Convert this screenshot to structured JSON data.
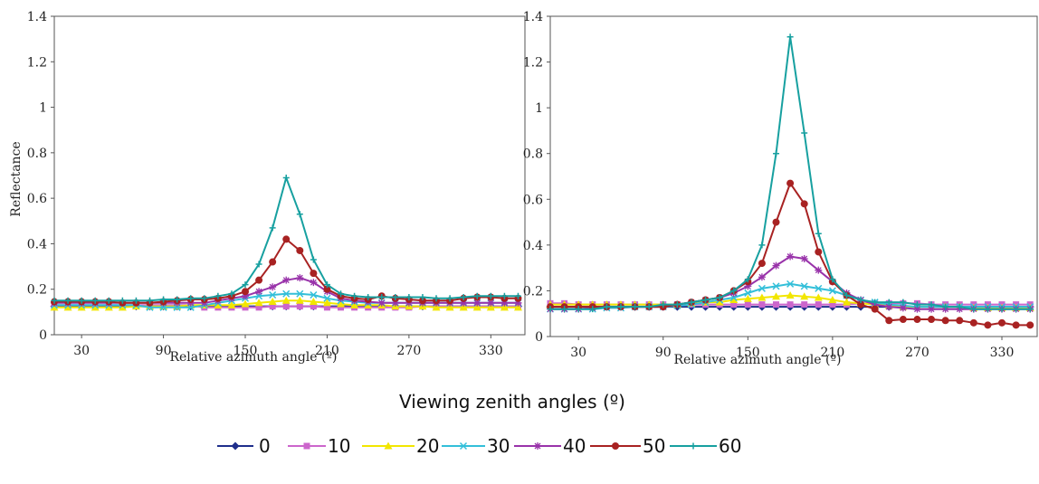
{
  "chart_data": [
    {
      "type": "line",
      "xlabel": "Relative azimuth angle (º)",
      "ylabel": "Reflectance",
      "xlim": [
        10,
        355
      ],
      "ylim": [
        0,
        1.4
      ],
      "xticks": [
        "30",
        "90",
        "150",
        "210",
        "270",
        "330"
      ],
      "yticks": [
        "0",
        "0.2",
        "0.4",
        "0.6",
        "0.8",
        "1",
        "1.2",
        "1.4"
      ],
      "x": [
        10,
        20,
        30,
        40,
        50,
        60,
        70,
        80,
        90,
        100,
        110,
        120,
        130,
        140,
        150,
        160,
        170,
        180,
        190,
        200,
        210,
        220,
        230,
        240,
        250,
        260,
        270,
        280,
        290,
        300,
        310,
        320,
        330,
        340,
        350
      ],
      "series": [
        {
          "name": "0",
          "color": "#1f2f8c",
          "marker": "diamond",
          "values": [
            0.125,
            0.125,
            0.125,
            0.125,
            0.125,
            0.125,
            0.125,
            0.125,
            0.125,
            0.125,
            0.125,
            0.125,
            0.125,
            0.125,
            0.125,
            0.125,
            0.125,
            0.125,
            0.125,
            0.125,
            0.125,
            0.125,
            0.125,
            0.125,
            0.125,
            0.125,
            0.125,
            0.125,
            0.125,
            0.125,
            0.125,
            0.125,
            0.125,
            0.125,
            0.125
          ]
        },
        {
          "name": "10",
          "color": "#cc66cc",
          "marker": "square",
          "values": [
            0.13,
            0.13,
            0.13,
            0.13,
            0.13,
            0.13,
            0.13,
            0.13,
            0.13,
            0.13,
            0.13,
            0.12,
            0.12,
            0.12,
            0.12,
            0.12,
            0.125,
            0.125,
            0.125,
            0.125,
            0.12,
            0.12,
            0.12,
            0.12,
            0.12,
            0.12,
            0.12,
            0.125,
            0.125,
            0.125,
            0.125,
            0.125,
            0.125,
            0.125,
            0.125
          ]
        },
        {
          "name": "20",
          "color": "#f2e600",
          "marker": "triangle",
          "values": [
            0.12,
            0.12,
            0.12,
            0.12,
            0.12,
            0.12,
            0.125,
            0.125,
            0.125,
            0.125,
            0.13,
            0.13,
            0.13,
            0.13,
            0.135,
            0.14,
            0.145,
            0.15,
            0.15,
            0.145,
            0.14,
            0.135,
            0.13,
            0.13,
            0.13,
            0.125,
            0.125,
            0.125,
            0.12,
            0.12,
            0.12,
            0.12,
            0.12,
            0.12,
            0.12
          ]
        },
        {
          "name": "30",
          "color": "#33bfd9",
          "marker": "x",
          "values": [
            0.13,
            0.13,
            0.13,
            0.13,
            0.13,
            0.13,
            0.13,
            0.12,
            0.12,
            0.12,
            0.12,
            0.13,
            0.14,
            0.15,
            0.16,
            0.17,
            0.175,
            0.18,
            0.18,
            0.175,
            0.16,
            0.15,
            0.145,
            0.14,
            0.14,
            0.14,
            0.14,
            0.14,
            0.14,
            0.14,
            0.14,
            0.14,
            0.14,
            0.14,
            0.14
          ]
        },
        {
          "name": "40",
          "color": "#9933aa",
          "marker": "star",
          "values": [
            0.14,
            0.14,
            0.14,
            0.14,
            0.14,
            0.14,
            0.14,
            0.14,
            0.14,
            0.14,
            0.14,
            0.14,
            0.15,
            0.16,
            0.17,
            0.19,
            0.21,
            0.24,
            0.25,
            0.23,
            0.19,
            0.16,
            0.15,
            0.145,
            0.14,
            0.14,
            0.14,
            0.14,
            0.14,
            0.14,
            0.14,
            0.14,
            0.14,
            0.14,
            0.14
          ]
        },
        {
          "name": "50",
          "color": "#a82222",
          "marker": "circle",
          "values": [
            0.145,
            0.145,
            0.145,
            0.145,
            0.145,
            0.14,
            0.14,
            0.14,
            0.145,
            0.15,
            0.155,
            0.155,
            0.16,
            0.17,
            0.19,
            0.24,
            0.32,
            0.42,
            0.37,
            0.27,
            0.2,
            0.17,
            0.16,
            0.155,
            0.17,
            0.16,
            0.155,
            0.15,
            0.15,
            0.15,
            0.16,
            0.165,
            0.165,
            0.16,
            0.16
          ]
        },
        {
          "name": "60",
          "color": "#17a0a0",
          "marker": "plus",
          "values": [
            0.15,
            0.15,
            0.15,
            0.15,
            0.15,
            0.15,
            0.15,
            0.15,
            0.155,
            0.155,
            0.16,
            0.16,
            0.17,
            0.18,
            0.22,
            0.31,
            0.47,
            0.69,
            0.53,
            0.33,
            0.22,
            0.18,
            0.17,
            0.165,
            0.165,
            0.165,
            0.165,
            0.165,
            0.16,
            0.16,
            0.165,
            0.17,
            0.17,
            0.17,
            0.17
          ]
        }
      ]
    },
    {
      "type": "line",
      "xlabel": "Relative azimuth angle (º)",
      "ylabel": "",
      "xlim": [
        10,
        355
      ],
      "ylim": [
        0,
        1.4
      ],
      "xticks": [
        "30",
        "90",
        "150",
        "210",
        "270",
        "330"
      ],
      "yticks": [
        "0",
        "0.2",
        "0.4",
        "0.6",
        "0.8",
        "1",
        "1.2",
        "1.4"
      ],
      "x": [
        10,
        20,
        30,
        40,
        50,
        60,
        70,
        80,
        90,
        100,
        110,
        120,
        130,
        140,
        150,
        160,
        170,
        180,
        190,
        200,
        210,
        220,
        230,
        240,
        250,
        260,
        270,
        280,
        290,
        300,
        310,
        320,
        330,
        340,
        350
      ],
      "series": [
        {
          "name": "0",
          "color": "#1f2f8c",
          "marker": "diamond",
          "values": [
            0.13,
            0.13,
            0.13,
            0.13,
            0.13,
            0.13,
            0.13,
            0.13,
            0.13,
            0.13,
            0.13,
            0.13,
            0.13,
            0.13,
            0.13,
            0.13,
            0.13,
            0.13,
            0.13,
            0.13,
            0.13,
            0.13,
            0.13,
            0.13,
            0.13,
            0.13,
            0.13,
            0.13,
            0.13,
            0.13,
            0.13,
            0.13,
            0.13,
            0.13,
            0.13
          ]
        },
        {
          "name": "10",
          "color": "#cc66cc",
          "marker": "square",
          "values": [
            0.145,
            0.145,
            0.14,
            0.14,
            0.14,
            0.14,
            0.14,
            0.14,
            0.14,
            0.14,
            0.14,
            0.14,
            0.14,
            0.14,
            0.14,
            0.14,
            0.14,
            0.14,
            0.14,
            0.14,
            0.14,
            0.14,
            0.145,
            0.145,
            0.145,
            0.145,
            0.145,
            0.14,
            0.14,
            0.14,
            0.14,
            0.14,
            0.14,
            0.14,
            0.14
          ]
        },
        {
          "name": "20",
          "color": "#f2e600",
          "marker": "triangle",
          "values": [
            0.14,
            0.14,
            0.14,
            0.14,
            0.14,
            0.14,
            0.14,
            0.14,
            0.14,
            0.14,
            0.145,
            0.15,
            0.15,
            0.16,
            0.165,
            0.17,
            0.175,
            0.18,
            0.175,
            0.17,
            0.16,
            0.15,
            0.145,
            0.14,
            0.135,
            0.13,
            0.13,
            0.13,
            0.13,
            0.13,
            0.125,
            0.125,
            0.125,
            0.125,
            0.125
          ]
        },
        {
          "name": "30",
          "color": "#33bfd9",
          "marker": "x",
          "values": [
            0.12,
            0.12,
            0.12,
            0.12,
            0.125,
            0.125,
            0.13,
            0.13,
            0.13,
            0.135,
            0.14,
            0.15,
            0.16,
            0.17,
            0.19,
            0.21,
            0.22,
            0.23,
            0.22,
            0.21,
            0.2,
            0.18,
            0.16,
            0.15,
            0.14,
            0.135,
            0.13,
            0.13,
            0.13,
            0.13,
            0.13,
            0.13,
            0.13,
            0.13,
            0.13
          ]
        },
        {
          "name": "40",
          "color": "#9933aa",
          "marker": "star",
          "values": [
            0.12,
            0.12,
            0.12,
            0.125,
            0.13,
            0.13,
            0.13,
            0.13,
            0.13,
            0.14,
            0.15,
            0.16,
            0.17,
            0.19,
            0.22,
            0.26,
            0.31,
            0.35,
            0.34,
            0.29,
            0.24,
            0.19,
            0.16,
            0.14,
            0.13,
            0.125,
            0.12,
            0.12,
            0.12,
            0.12,
            0.12,
            0.12,
            0.12,
            0.12,
            0.12
          ]
        },
        {
          "name": "50",
          "color": "#a82222",
          "marker": "circle",
          "values": [
            0.13,
            0.13,
            0.13,
            0.13,
            0.13,
            0.13,
            0.13,
            0.13,
            0.13,
            0.14,
            0.15,
            0.16,
            0.17,
            0.2,
            0.24,
            0.32,
            0.5,
            0.67,
            0.58,
            0.37,
            0.24,
            0.18,
            0.14,
            0.12,
            0.07,
            0.075,
            0.075,
            0.075,
            0.07,
            0.07,
            0.06,
            0.05,
            0.06,
            0.05,
            0.05
          ]
        },
        {
          "name": "60",
          "color": "#17a0a0",
          "marker": "plus",
          "values": [
            0.12,
            0.12,
            0.12,
            0.12,
            0.13,
            0.13,
            0.13,
            0.13,
            0.14,
            0.14,
            0.15,
            0.16,
            0.17,
            0.2,
            0.25,
            0.4,
            0.8,
            1.31,
            0.89,
            0.45,
            0.25,
            0.18,
            0.16,
            0.15,
            0.15,
            0.15,
            0.14,
            0.14,
            0.13,
            0.13,
            0.12,
            0.12,
            0.12,
            0.12,
            0.12
          ]
        }
      ]
    }
  ],
  "legend": {
    "title": "Viewing zenith angles (º)",
    "items": [
      "0",
      "10",
      "20",
      "30",
      "40",
      "50",
      "60"
    ]
  }
}
